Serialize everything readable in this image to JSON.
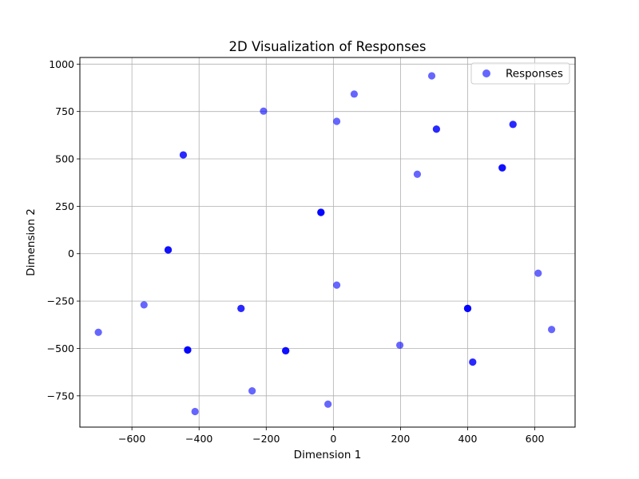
{
  "chart_data": {
    "type": "scatter",
    "title": "2D Visualization of Responses",
    "xlabel": "Dimension 1",
    "ylabel": "Dimension 2",
    "xlim": [
      -755,
      720
    ],
    "ylim": [
      -915,
      1035
    ],
    "xticks": [
      -600,
      -400,
      -200,
      0,
      200,
      400,
      600
    ],
    "yticks": [
      -750,
      -500,
      -250,
      0,
      250,
      500,
      750,
      1000
    ],
    "grid": true,
    "legend_position": "top-right",
    "series": [
      {
        "name": "Responses",
        "color": "#0000ff",
        "alpha": 0.6,
        "points": [
          {
            "x": 293,
            "y": 938,
            "n": 1
          },
          {
            "x": 62,
            "y": 842,
            "n": 1
          },
          {
            "x": -208,
            "y": 752,
            "n": 1
          },
          {
            "x": 10,
            "y": 698,
            "n": 1
          },
          {
            "x": 307,
            "y": 657,
            "n": 2
          },
          {
            "x": 535,
            "y": 682,
            "n": 2
          },
          {
            "x": -447,
            "y": 521,
            "n": 2
          },
          {
            "x": 503,
            "y": 453,
            "n": 3
          },
          {
            "x": 250,
            "y": 419,
            "n": 1
          },
          {
            "x": -37,
            "y": 218,
            "n": 4
          },
          {
            "x": -492,
            "y": 20,
            "n": 3
          },
          {
            "x": 10,
            "y": -166,
            "n": 1
          },
          {
            "x": 610,
            "y": -103,
            "n": 1
          },
          {
            "x": -564,
            "y": -270,
            "n": 1
          },
          {
            "x": -275,
            "y": -289,
            "n": 2
          },
          {
            "x": 400,
            "y": -289,
            "n": 4
          },
          {
            "x": -700,
            "y": -415,
            "n": 1
          },
          {
            "x": 650,
            "y": -400,
            "n": 1
          },
          {
            "x": 198,
            "y": -483,
            "n": 1
          },
          {
            "x": -434,
            "y": -508,
            "n": 4
          },
          {
            "x": -142,
            "y": -512,
            "n": 3
          },
          {
            "x": 415,
            "y": -572,
            "n": 2
          },
          {
            "x": -242,
            "y": -724,
            "n": 1
          },
          {
            "x": -16,
            "y": -794,
            "n": 1
          },
          {
            "x": -412,
            "y": -833,
            "n": 1
          }
        ]
      }
    ]
  }
}
